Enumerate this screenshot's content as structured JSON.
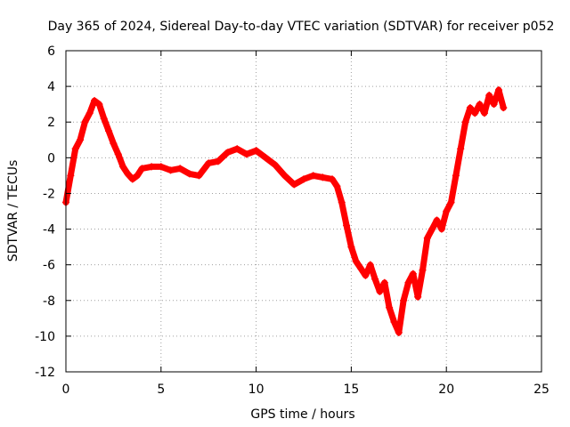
{
  "chart_data": {
    "type": "scatter",
    "title": "Day 365 of 2024, Sidereal Day-to-day VTEC variation (SDTVAR) for receiver p052",
    "xlabel": "GPS time / hours",
    "ylabel": "SDTVAR / TECUs",
    "xlim": [
      0,
      25
    ],
    "ylim": [
      -12,
      6
    ],
    "xticks": [
      0,
      5,
      10,
      15,
      20,
      25
    ],
    "yticks": [
      -12,
      -10,
      -8,
      -6,
      -4,
      -2,
      0,
      2,
      4,
      6
    ],
    "grid": true,
    "marker": "+",
    "series": [
      {
        "name": "SDTVAR",
        "color": "#ff0000",
        "x": [
          0.0,
          0.25,
          0.5,
          0.75,
          1.0,
          1.25,
          1.5,
          1.75,
          2.0,
          2.25,
          2.5,
          2.75,
          3.0,
          3.25,
          3.5,
          3.75,
          4.0,
          4.5,
          5.0,
          5.5,
          6.0,
          6.5,
          7.0,
          7.5,
          8.0,
          8.5,
          9.0,
          9.5,
          10.0,
          10.5,
          11.0,
          11.5,
          12.0,
          12.5,
          13.0,
          13.5,
          14.0,
          14.25,
          14.5,
          14.75,
          15.0,
          15.25,
          15.5,
          15.75,
          16.0,
          16.25,
          16.5,
          16.75,
          17.0,
          17.25,
          17.5,
          17.75,
          18.0,
          18.25,
          18.5,
          18.75,
          19.0,
          19.25,
          19.5,
          19.75,
          20.0,
          20.25,
          20.5,
          20.75,
          21.0,
          21.25,
          21.5,
          21.75,
          22.0,
          22.25,
          22.5,
          22.75,
          23.0
        ],
        "y": [
          -2.5,
          -1.0,
          0.5,
          1.0,
          2.0,
          2.5,
          3.2,
          3.0,
          2.2,
          1.5,
          0.8,
          0.2,
          -0.5,
          -0.9,
          -1.2,
          -1.0,
          -0.6,
          -0.5,
          -0.5,
          -0.7,
          -0.6,
          -0.9,
          -1.0,
          -0.3,
          -0.2,
          0.3,
          0.5,
          0.2,
          0.4,
          0.0,
          -0.4,
          -1.0,
          -1.5,
          -1.2,
          -1.0,
          -1.1,
          -1.2,
          -1.6,
          -2.5,
          -3.8,
          -5.0,
          -5.8,
          -6.2,
          -6.6,
          -6.0,
          -6.8,
          -7.5,
          -7.0,
          -8.4,
          -9.2,
          -9.8,
          -8.0,
          -7.0,
          -6.5,
          -7.8,
          -6.3,
          -4.5,
          -4.0,
          -3.5,
          -4.0,
          -3.0,
          -2.5,
          -1.0,
          0.5,
          2.0,
          2.8,
          2.5,
          3.0,
          2.5,
          3.5,
          3.0,
          3.8,
          2.8
        ]
      }
    ]
  }
}
